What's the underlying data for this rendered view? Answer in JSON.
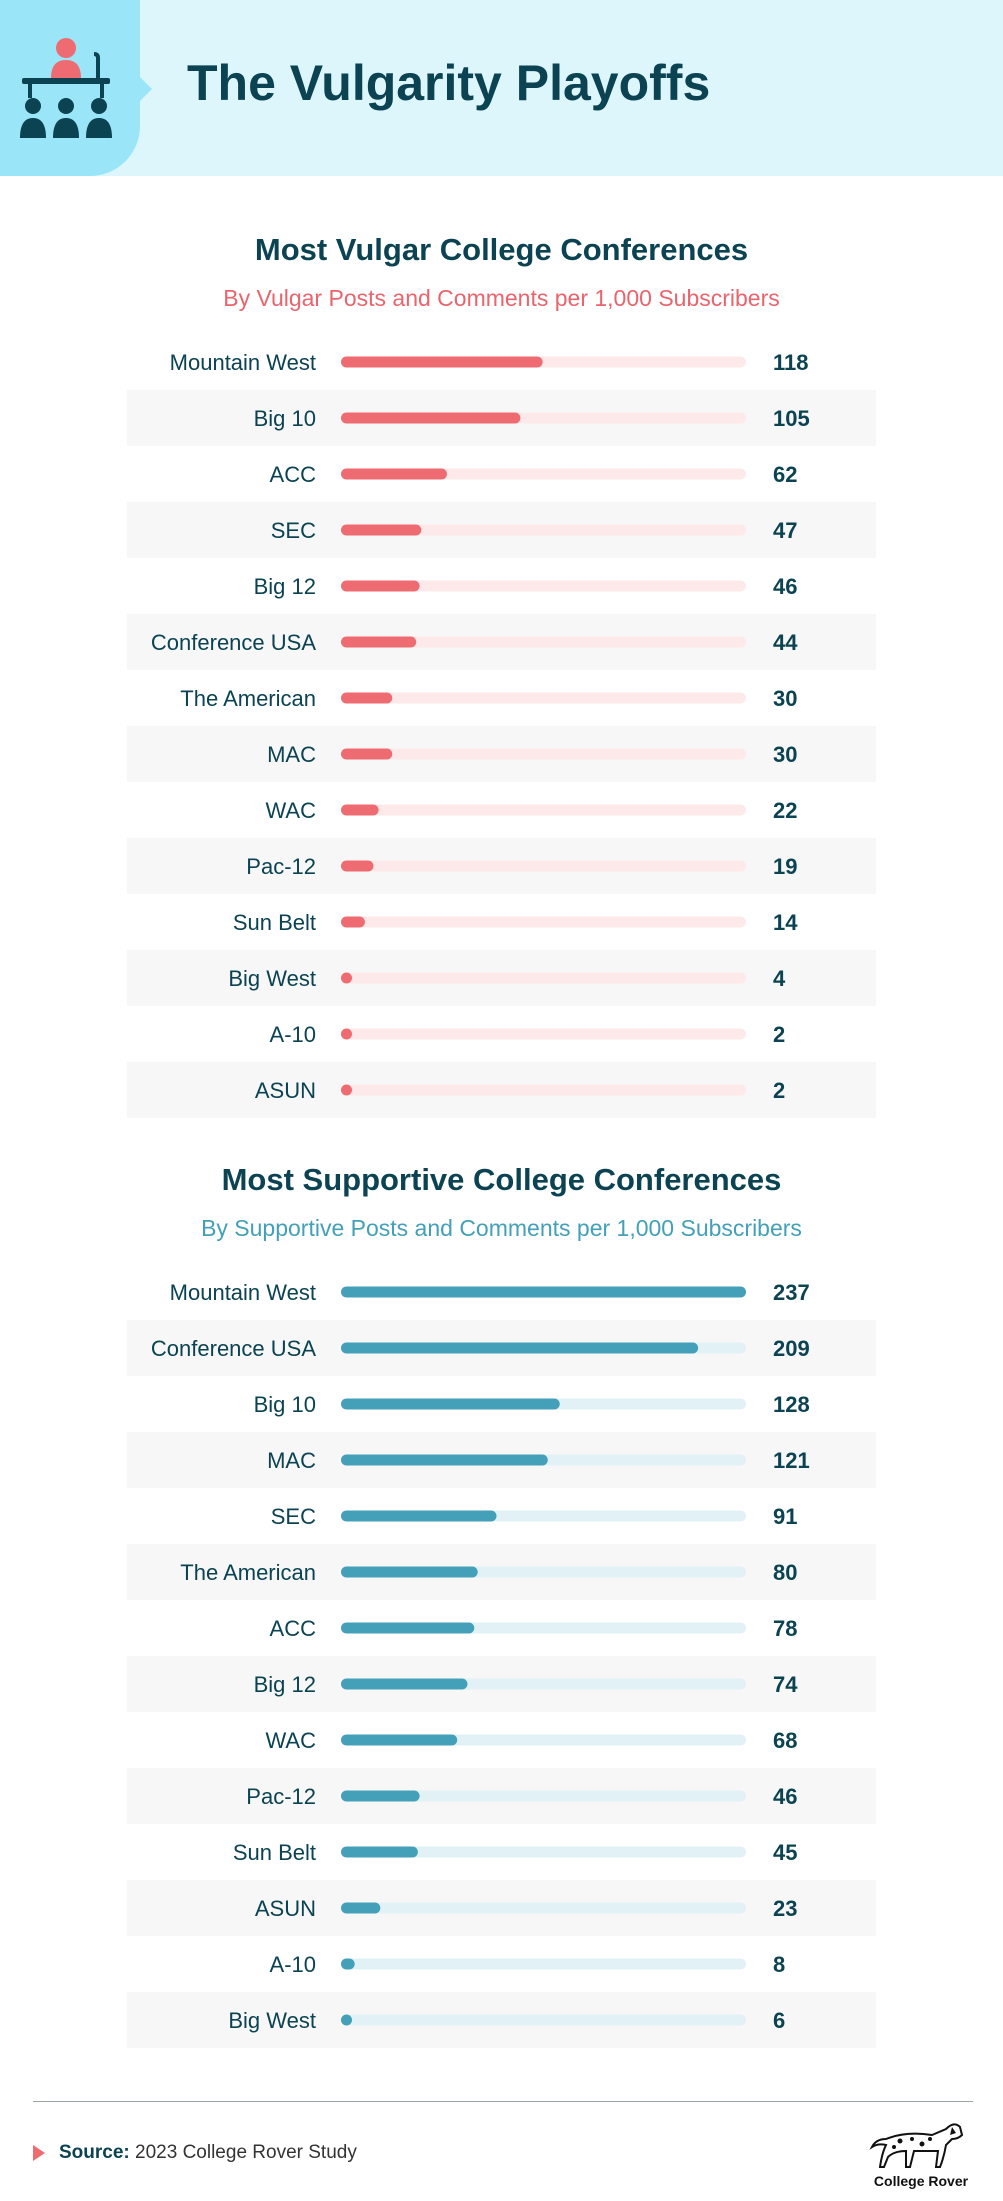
{
  "header": {
    "title": "The Vulgarity Playoffs",
    "icon": "presenter-audience-icon",
    "background_color": "#ddf6fc",
    "icon_box_color": "#9ae6f8"
  },
  "chart_data": [
    {
      "type": "bar",
      "orientation": "horizontal",
      "title": "Most Vulgar College Conferences",
      "subtitle": "By Vulgar Posts and Comments per 1,000 Subscribers",
      "categories": [
        "Mountain West",
        "Big 10",
        "ACC",
        "SEC",
        "Big 12",
        "Conference USA",
        "The American",
        "MAC",
        "WAC",
        "Pac-12",
        "Sun Belt",
        "Big West",
        "A-10",
        "ASUN"
      ],
      "values": [
        118,
        105,
        62,
        47,
        46,
        44,
        30,
        30,
        22,
        19,
        14,
        4,
        2,
        2
      ],
      "xlim": [
        0,
        237
      ],
      "bar_color": "#ef6b72",
      "track_color": "#fde9ea",
      "subtitle_color": "#e9646c"
    },
    {
      "type": "bar",
      "orientation": "horizontal",
      "title": "Most Supportive College Conferences",
      "subtitle": "By Supportive Posts and Comments per 1,000 Subscribers",
      "categories": [
        "Mountain West",
        "Conference USA",
        "Big 10",
        "MAC",
        "SEC",
        "The American",
        "ACC",
        "Big 12",
        "WAC",
        "Pac-12",
        "Sun Belt",
        "ASUN",
        "A-10",
        "Big West"
      ],
      "values": [
        237,
        209,
        128,
        121,
        91,
        80,
        78,
        74,
        68,
        46,
        45,
        23,
        8,
        6
      ],
      "xlim": [
        0,
        237
      ],
      "bar_color": "#43a0b8",
      "track_color": "#e2f1f5",
      "subtitle_color": "#43a0b8"
    }
  ],
  "footer": {
    "source_label": "Source:",
    "source_text": "2023 College Rover Study",
    "logo_text": "College Rover",
    "logo_icon": "dalmatian-dog-icon"
  }
}
